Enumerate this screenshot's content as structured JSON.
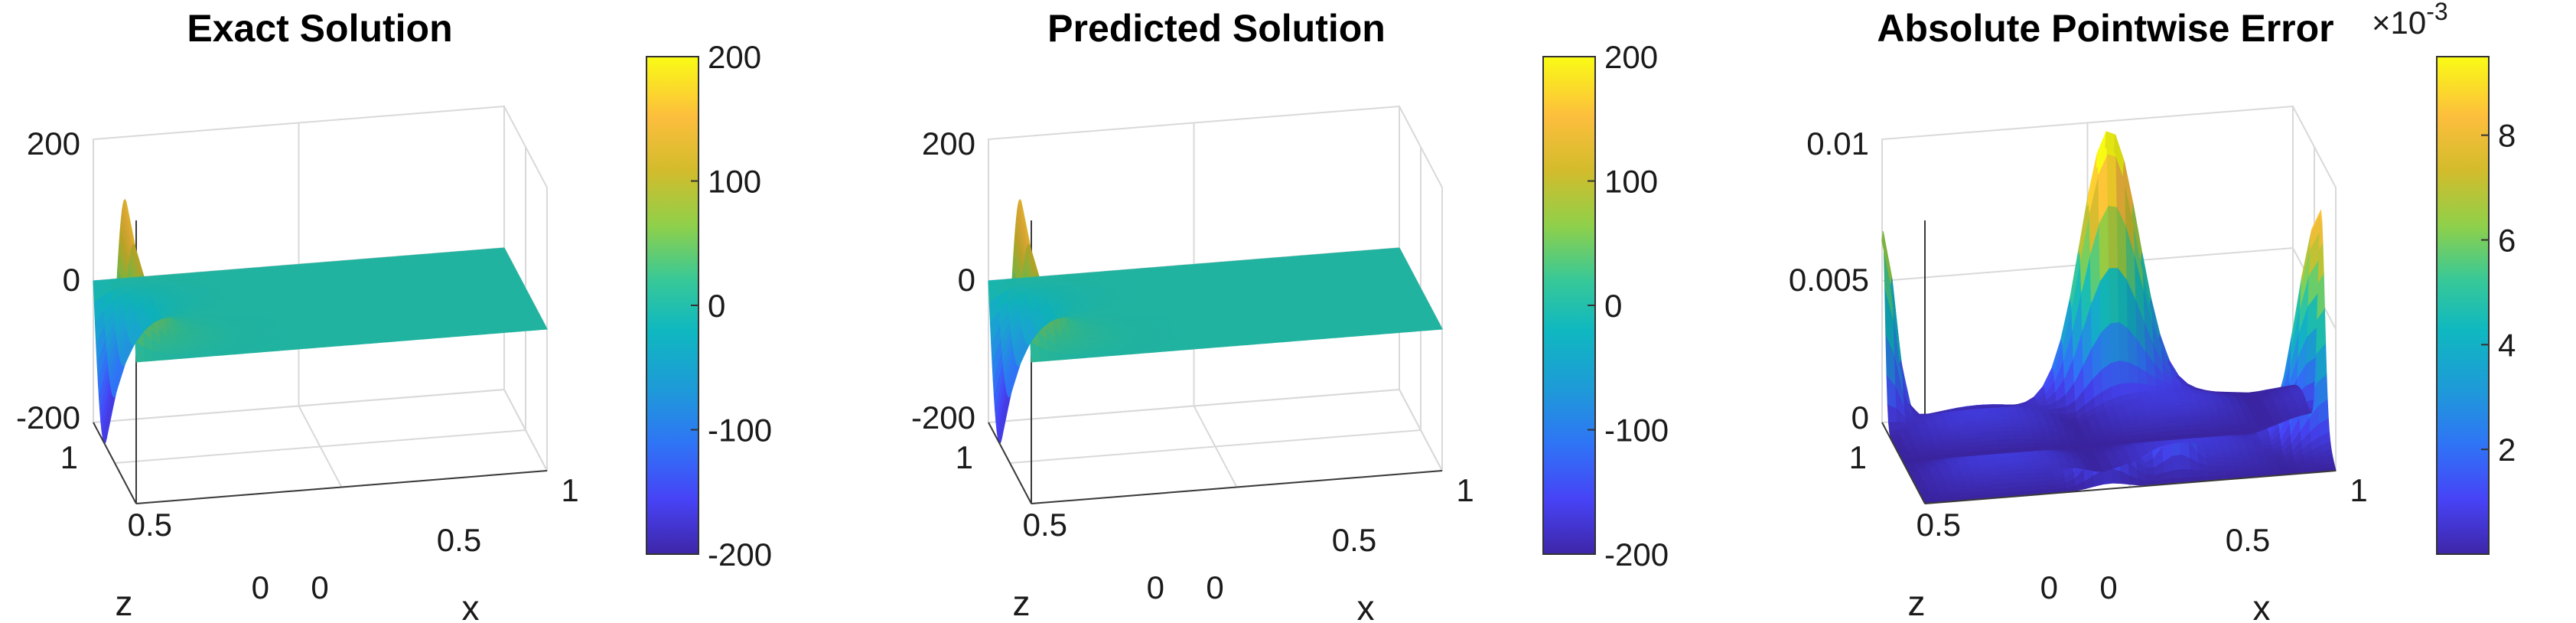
{
  "colormap": [
    "#3e26a8",
    "#4743f6",
    "#2f74f6",
    "#1e9ad8",
    "#0fb8c0",
    "#37c898",
    "#8fd04a",
    "#d2bc2c",
    "#fdbe3d",
    "#f9fb15"
  ],
  "chart_data": [
    {
      "type": "surface",
      "title": "Exact Solution",
      "xlabel": "x",
      "zlabel_text": "z",
      "x_ticks": [
        "0",
        "0.5",
        "1"
      ],
      "y_ticks": [
        "0",
        "0.5",
        "1"
      ],
      "z_ticks": [
        "-200",
        "0",
        "200"
      ],
      "xlim": [
        0,
        1
      ],
      "ylim": [
        0,
        1
      ],
      "zlim": [
        -200,
        200
      ],
      "surface_kind": "solution",
      "colorbar": {
        "range": [
          -200,
          200
        ],
        "ticks": [
          "-200",
          "-100",
          "0",
          "100",
          "200"
        ],
        "tick_values": [
          -200,
          -100,
          0,
          100,
          200
        ],
        "exponent": ""
      }
    },
    {
      "type": "surface",
      "title": "Predicted Solution",
      "xlabel": "x",
      "zlabel_text": "z",
      "x_ticks": [
        "0",
        "0.5",
        "1"
      ],
      "y_ticks": [
        "0",
        "0.5",
        "1"
      ],
      "z_ticks": [
        "-200",
        "0",
        "200"
      ],
      "xlim": [
        0,
        1
      ],
      "ylim": [
        0,
        1
      ],
      "zlim": [
        -200,
        200
      ],
      "surface_kind": "solution",
      "colorbar": {
        "range": [
          -200,
          200
        ],
        "ticks": [
          "-200",
          "-100",
          "0",
          "100",
          "200"
        ],
        "tick_values": [
          -200,
          -100,
          0,
          100,
          200
        ],
        "exponent": ""
      }
    },
    {
      "type": "surface",
      "title": "Absolute Pointwise Error",
      "xlabel": "x",
      "zlabel_text": "z",
      "x_ticks": [
        "0",
        "0.5",
        "1"
      ],
      "y_ticks": [
        "0",
        "0.5",
        "1"
      ],
      "z_ticks": [
        "0",
        "0.005",
        "0.01"
      ],
      "xlim": [
        0,
        1
      ],
      "ylim": [
        0,
        1
      ],
      "zlim": [
        0,
        0.011
      ],
      "surface_kind": "error",
      "colorbar": {
        "range": [
          0,
          9.5
        ],
        "ticks": [
          "2",
          "4",
          "6",
          "8"
        ],
        "tick_values": [
          2,
          4,
          6,
          8
        ],
        "exponent": "×10",
        "exponent_power": "-3"
      }
    }
  ]
}
